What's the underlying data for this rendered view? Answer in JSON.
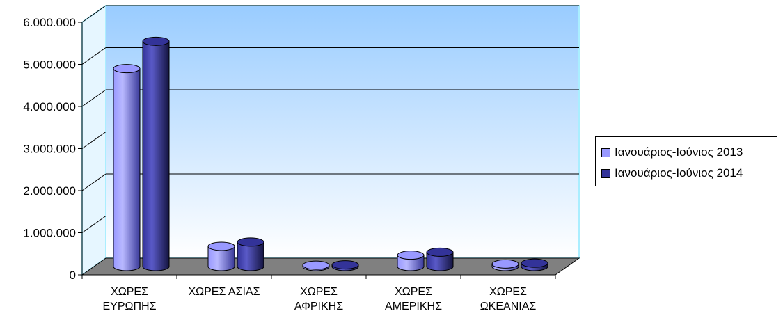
{
  "chart_data": {
    "type": "bar",
    "categories": [
      [
        "ΧΩΡΕΣ",
        "ΕΥΡΩΠΗΣ"
      ],
      [
        "ΧΩΡΕΣ ΑΣΙΑΣ"
      ],
      [
        "ΧΩΡΕΣ",
        "ΑΦΡΙΚΗΣ"
      ],
      [
        "ΧΩΡΕΣ",
        "ΑΜΕΡΙΚΗΣ"
      ],
      [
        "ΧΩΡΕΣ",
        "ΩΚΕΑΝΙΑΣ"
      ]
    ],
    "series": [
      {
        "name": "Ιανουάριος-Ιούνιος 2013",
        "color": "#9999ff",
        "values": [
          4700000,
          480000,
          30000,
          270000,
          60000
        ]
      },
      {
        "name": "Ιανουάριος-Ιούνιος 2014",
        "color": "#333399",
        "values": [
          5350000,
          580000,
          40000,
          340000,
          80000
        ]
      }
    ],
    "ylim": [
      0,
      6000000
    ],
    "yticks": [
      {
        "value": 0,
        "label": "0"
      },
      {
        "value": 1000000,
        "label": "1.000.000"
      },
      {
        "value": 2000000,
        "label": "2.000.000"
      },
      {
        "value": 3000000,
        "label": "3.000.000"
      },
      {
        "value": 4000000,
        "label": "4.000.000"
      },
      {
        "value": 5000000,
        "label": "5.000.000"
      },
      {
        "value": 6000000,
        "label": "6.000.000"
      }
    ],
    "grid": true,
    "legend_position": "right",
    "style": "3d-cylinder"
  }
}
